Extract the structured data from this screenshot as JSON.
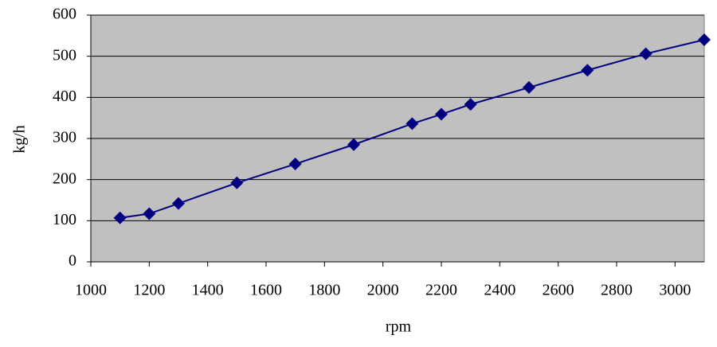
{
  "chart_data": {
    "type": "line",
    "x_label": "rpm",
    "y_label": "kg/h",
    "x": [
      1100,
      1200,
      1300,
      1500,
      1700,
      1900,
      2100,
      2200,
      2300,
      2500,
      2700,
      2900,
      3100
    ],
    "series": [
      {
        "color": "#000080",
        "values": [
          107,
          117,
          142,
          192,
          238,
          285,
          336,
          359,
          383,
          424,
          466,
          506,
          540
        ]
      }
    ],
    "xlim": [
      1000,
      3100
    ],
    "xticks": [
      1000,
      1200,
      1400,
      1600,
      1800,
      2000,
      2200,
      2400,
      2600,
      2800,
      3000
    ],
    "ylim": [
      0,
      600
    ],
    "yticks": [
      0,
      100,
      200,
      300,
      400,
      500,
      600
    ],
    "grid": true,
    "plot_background": "#c0c0c0"
  }
}
